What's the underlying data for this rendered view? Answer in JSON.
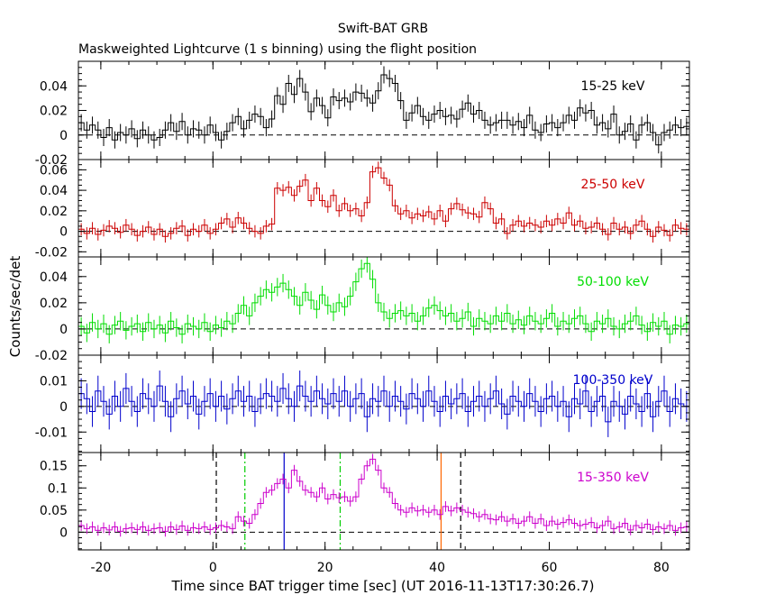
{
  "title": "Swift-BAT GRB",
  "subtitle": "Maskweighted Lightcurve (1 s binning) using the flight position",
  "xlabel": "Time since BAT trigger time [sec] (UT 2016-11-13T17:30:26.7)",
  "ylabel": "Counts/sec/det",
  "chart_data": {
    "type": "line",
    "step": true,
    "error_bars": true,
    "xlim": [
      -24,
      85
    ],
    "x_ticks": [
      -20,
      0,
      20,
      40,
      60,
      80
    ],
    "panels": [
      {
        "band": "15-25 keV",
        "color": "#000000",
        "ylim": [
          -0.02,
          0.06
        ],
        "y_ticks": [
          -0.02,
          0,
          0.02,
          0.04
        ],
        "y_tick_labels": [
          "-0.02",
          "0",
          "0.02",
          "0.04"
        ],
        "series": {
          "x_start": -24,
          "bin": 1,
          "err": 0.007,
          "values": [
            0.01,
            0.004,
            0.008,
            0.004,
            -0.002,
            0.006,
            -0.004,
            0.002,
            0.0,
            0.005,
            -0.003,
            0.004,
            0.0,
            -0.004,
            -0.002,
            0.004,
            0.01,
            0.003,
            0.011,
            0.0,
            0.005,
            0.004,
            0.0,
            0.008,
            0.002,
            -0.004,
            0.003,
            0.01,
            0.015,
            0.005,
            0.012,
            0.017,
            0.015,
            0.006,
            0.013,
            0.032,
            0.025,
            0.042,
            0.033,
            0.046,
            0.035,
            0.019,
            0.03,
            0.024,
            0.014,
            0.031,
            0.028,
            0.03,
            0.027,
            0.035,
            0.034,
            0.03,
            0.026,
            0.036,
            0.049,
            0.046,
            0.042,
            0.028,
            0.012,
            0.018,
            0.024,
            0.015,
            0.012,
            0.017,
            0.02,
            0.015,
            0.016,
            0.013,
            0.021,
            0.026,
            0.017,
            0.02,
            0.012,
            0.008,
            0.01,
            0.012,
            0.012,
            0.008,
            0.011,
            0.006,
            0.016,
            0.004,
            0.002,
            0.009,
            0.01,
            0.006,
            0.01,
            0.016,
            0.012,
            0.022,
            0.018,
            0.02,
            0.008,
            0.01,
            0.005,
            0.017,
            0.0,
            0.003,
            0.009,
            -0.004,
            0.008,
            0.01,
            0.002,
            -0.008,
            0.002,
            0.004,
            0.008,
            0.006,
            0.007
          ]
        }
      },
      {
        "band": "25-50 keV",
        "color": "#cc0000",
        "ylim": [
          -0.025,
          0.07
        ],
        "y_ticks": [
          -0.02,
          0,
          0.02,
          0.04,
          0.06
        ],
        "y_tick_labels": [
          "-0.02",
          "0",
          "0.02",
          "0.04",
          "0.06"
        ],
        "series": {
          "x_start": -24,
          "bin": 1,
          "err": 0.006,
          "values": [
            0.002,
            -0.002,
            0.003,
            -0.003,
            0.001,
            0.005,
            0.003,
            -0.001,
            0.006,
            0.002,
            -0.004,
            0.0,
            0.004,
            -0.003,
            0.002,
            -0.005,
            -0.002,
            0.003,
            0.005,
            -0.004,
            0.002,
            0.0,
            0.006,
            -0.002,
            0.002,
            0.008,
            0.012,
            0.004,
            0.013,
            0.008,
            0.003,
            0.0,
            -0.002,
            0.005,
            0.007,
            0.042,
            0.04,
            0.043,
            0.035,
            0.044,
            0.05,
            0.03,
            0.042,
            0.03,
            0.024,
            0.035,
            0.02,
            0.027,
            0.02,
            0.022,
            0.015,
            0.028,
            0.058,
            0.062,
            0.052,
            0.045,
            0.025,
            0.017,
            0.02,
            0.013,
            0.017,
            0.015,
            0.019,
            0.012,
            0.02,
            0.01,
            0.022,
            0.027,
            0.021,
            0.018,
            0.017,
            0.014,
            0.028,
            0.022,
            0.008,
            0.012,
            -0.002,
            0.006,
            0.01,
            0.005,
            0.008,
            0.006,
            0.004,
            0.01,
            0.006,
            0.012,
            0.008,
            0.018,
            0.006,
            0.01,
            0.003,
            0.004,
            0.008,
            0.002,
            -0.003,
            0.008,
            0.002,
            0.004,
            -0.002,
            0.006,
            0.01,
            0.002,
            -0.005,
            0.004,
            0.001,
            -0.004,
            0.006,
            0.003,
            0.002
          ]
        }
      },
      {
        "band": "50-100 keV",
        "color": "#00dd00",
        "ylim": [
          -0.02,
          0.055
        ],
        "y_ticks": [
          -0.02,
          0,
          0.02,
          0.04
        ],
        "y_tick_labels": [
          "-0.02",
          "0",
          "0.02",
          "0.04"
        ],
        "series": {
          "x_start": -24,
          "bin": 1,
          "err": 0.007,
          "values": [
            0.002,
            -0.003,
            0.005,
            0.0,
            0.004,
            -0.004,
            0.003,
            0.006,
            -0.001,
            0.002,
            0.004,
            -0.002,
            0.005,
            0.0,
            0.003,
            -0.003,
            0.006,
            0.001,
            -0.004,
            0.004,
            0.002,
            0.0,
            0.005,
            -0.002,
            0.003,
            0.001,
            0.006,
            0.004,
            0.012,
            0.018,
            0.01,
            0.02,
            0.025,
            0.03,
            0.028,
            0.032,
            0.035,
            0.03,
            0.025,
            0.018,
            0.028,
            0.022,
            0.015,
            0.026,
            0.018,
            0.013,
            0.02,
            0.017,
            0.025,
            0.036,
            0.046,
            0.05,
            0.038,
            0.02,
            0.013,
            0.008,
            0.012,
            0.014,
            0.01,
            0.012,
            0.006,
            0.01,
            0.016,
            0.018,
            0.014,
            0.01,
            0.012,
            0.006,
            0.008,
            0.013,
            0.002,
            0.008,
            0.006,
            0.004,
            0.01,
            0.006,
            0.012,
            0.004,
            0.007,
            0.003,
            0.01,
            0.006,
            0.004,
            0.008,
            0.012,
            0.002,
            0.006,
            0.004,
            0.008,
            0.01,
            0.004,
            -0.002,
            0.006,
            0.004,
            0.008,
            0.002,
            0.0,
            0.004,
            0.006,
            0.01,
            0.003,
            -0.002,
            0.005,
            0.002,
            0.006,
            -0.004,
            0.003,
            0.002,
            0.004
          ]
        }
      },
      {
        "band": "100-350 keV",
        "color": "#0000cc",
        "ylim": [
          -0.018,
          0.02
        ],
        "y_ticks": [
          -0.01,
          0,
          0.01
        ],
        "y_tick_labels": [
          "-0.01",
          "0",
          "0.01"
        ],
        "series": {
          "x_start": -24,
          "bin": 1,
          "err": 0.006,
          "values": [
            0.005,
            0.003,
            -0.002,
            0.006,
            0.002,
            -0.003,
            0.004,
            0.0,
            0.007,
            0.002,
            -0.002,
            0.005,
            0.003,
            0.0,
            0.008,
            0.002,
            -0.004,
            0.003,
            0.006,
            0.001,
            0.004,
            -0.003,
            0.002,
            0.005,
            0.0,
            0.004,
            -0.001,
            0.003,
            0.006,
            0.002,
            0.004,
            -0.002,
            0.003,
            0.005,
            0.004,
            0.002,
            0.007,
            0.003,
            0.0,
            0.008,
            0.004,
            0.002,
            0.006,
            0.003,
            0.001,
            0.005,
            0.002,
            0.006,
            0.0,
            0.003,
            0.005,
            -0.004,
            0.003,
            0.002,
            0.006,
            0.0,
            0.004,
            0.002,
            -0.001,
            0.005,
            0.003,
            0.0,
            0.006,
            0.002,
            -0.002,
            0.004,
            0.001,
            0.003,
            0.005,
            -0.002,
            0.002,
            0.004,
            0.0,
            0.003,
            0.006,
            0.001,
            -0.003,
            0.004,
            0.002,
            0.0,
            0.005,
            0.002,
            -0.002,
            0.003,
            0.004,
            0.0,
            0.002,
            -0.004,
            0.003,
            0.001,
            0.006,
            -0.002,
            0.002,
            0.004,
            -0.006,
            0.002,
            0.0,
            -0.003,
            0.004,
            0.001,
            -0.002,
            0.005,
            -0.004,
            0.002,
            0.006,
            -0.002,
            0.003,
            0.001,
            0.0
          ]
        }
      },
      {
        "band": "15-350 keV",
        "color": "#cc00cc",
        "ylim": [
          -0.04,
          0.18
        ],
        "y_ticks": [
          0,
          0.05,
          0.1,
          0.15
        ],
        "y_tick_labels": [
          "0",
          "0.05",
          "0.1",
          "0.15"
        ],
        "series": {
          "x_start": -24,
          "bin": 1,
          "err": 0.012,
          "values": [
            0.015,
            0.008,
            0.012,
            0.004,
            0.01,
            0.005,
            0.012,
            0.002,
            0.008,
            0.01,
            0.006,
            0.012,
            0.004,
            0.008,
            0.01,
            0.002,
            0.012,
            0.006,
            0.014,
            0.004,
            0.01,
            0.008,
            0.012,
            0.006,
            0.01,
            0.015,
            0.012,
            0.008,
            0.035,
            0.025,
            0.02,
            0.04,
            0.065,
            0.09,
            0.095,
            0.11,
            0.12,
            0.1,
            0.14,
            0.115,
            0.095,
            0.09,
            0.08,
            0.1,
            0.075,
            0.085,
            0.078,
            0.08,
            0.07,
            0.08,
            0.12,
            0.15,
            0.165,
            0.14,
            0.1,
            0.09,
            0.065,
            0.05,
            0.045,
            0.055,
            0.048,
            0.05,
            0.045,
            0.05,
            0.04,
            0.058,
            0.048,
            0.055,
            0.05,
            0.045,
            0.042,
            0.035,
            0.04,
            0.03,
            0.028,
            0.035,
            0.025,
            0.03,
            0.02,
            0.025,
            0.035,
            0.02,
            0.03,
            0.015,
            0.025,
            0.018,
            0.022,
            0.028,
            0.02,
            0.015,
            0.018,
            0.022,
            0.01,
            0.015,
            0.025,
            0.008,
            0.012,
            0.02,
            0.005,
            0.015,
            0.01,
            0.018,
            0.006,
            0.012,
            0.008,
            0.015,
            0.004,
            0.01,
            0.012
          ]
        },
        "markers": [
          {
            "x": 0.6,
            "style": "dashed",
            "color": "#000000"
          },
          {
            "x": 44.2,
            "style": "dashed",
            "color": "#000000"
          },
          {
            "x": 5.7,
            "style": "dashdot",
            "color": "#00cc00"
          },
          {
            "x": 22.7,
            "style": "dashdot",
            "color": "#00cc00"
          },
          {
            "x": 12.7,
            "style": "solid",
            "color": "#0000cc"
          },
          {
            "x": 40.7,
            "style": "solid",
            "color": "#ff6600"
          }
        ]
      }
    ]
  }
}
